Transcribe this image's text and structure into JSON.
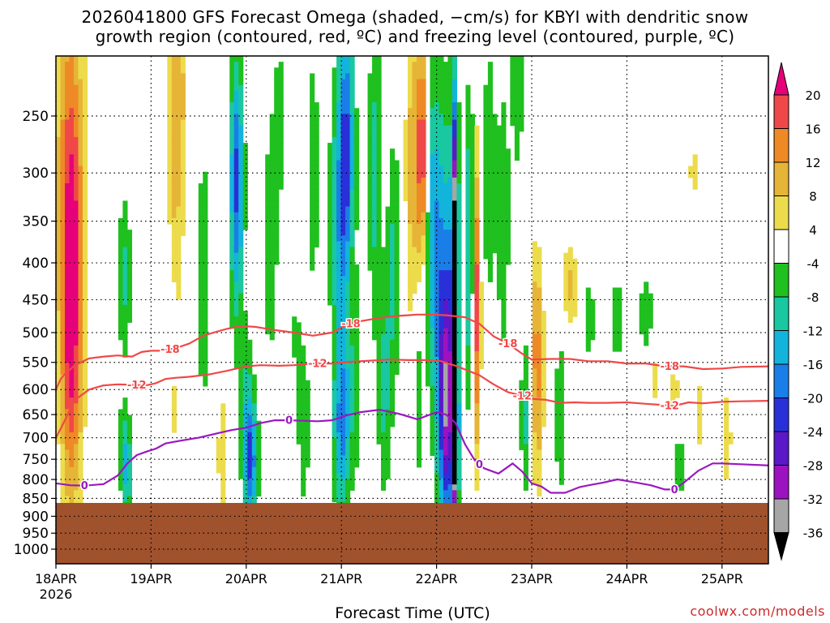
{
  "title_line1": "2026041800 GFS Forecast Omega (shaded, −cm/s) for KBYI with dendritic snow",
  "title_line2": "growth region (contoured, red, ºC) and freezing level (contoured, purple, ºC)",
  "xlabel": "Forecast Time (UTC)",
  "credit": "coolwx.com/models",
  "chart_data": {
    "type": "heatmap",
    "title": "2026041800 GFS Forecast Omega (shaded, −cm/s) for KBYI with dendritic snow growth region (contoured, red, ºC) and freezing level (contoured, purple, ºC)",
    "xlabel": "Forecast Time (UTC)",
    "ylabel": "",
    "x_ticks": [
      "18APR",
      "19APR",
      "20APR",
      "21APR",
      "22APR",
      "23APR",
      "24APR",
      "25APR"
    ],
    "x_year_label": "2026",
    "xlim_days": [
      0,
      7.5
    ],
    "y_ticks": [
      250,
      300,
      350,
      400,
      450,
      500,
      550,
      600,
      650,
      700,
      750,
      800,
      850,
      900,
      950,
      1000
    ],
    "ylim": [
      200,
      1050
    ],
    "y_scale": "log",
    "y_reversed": true,
    "grid": true,
    "colorbar": {
      "levels": [
        20,
        16,
        12,
        8,
        4,
        -4,
        -8,
        -12,
        -16,
        -20,
        -24,
        -28,
        -32,
        -36
      ],
      "colors": [
        "#e6007a",
        "#f04848",
        "#ee8a26",
        "#e6b437",
        "#ecdc4c",
        "#ffffff",
        "#1fc01f",
        "#19c8a0",
        "#12b4dc",
        "#1a7ee8",
        "#2a30d8",
        "#5a18c8",
        "#9c12c0",
        "#a6a6a6",
        "#000000"
      ]
    },
    "terrain_color": "#a0522d",
    "series": [
      {
        "name": "-18",
        "color": "#f04848",
        "x": [
          0,
          0.05,
          0.1,
          0.2,
          0.35,
          0.5,
          0.65,
          0.8,
          0.9,
          1.0,
          1.1,
          1.25,
          1.4,
          1.55,
          1.7,
          1.8,
          1.9,
          2.0,
          2.1,
          2.3,
          2.5,
          2.7,
          2.9,
          3.05,
          3.2,
          3.4,
          3.6,
          3.8,
          3.95,
          4.1,
          4.3,
          4.45,
          4.6,
          4.75,
          4.9,
          5.0,
          5.2,
          5.4,
          5.6,
          5.8,
          6.0,
          6.2,
          6.4,
          6.6,
          6.8,
          7.0,
          7.2,
          7.5
        ],
        "y": [
          600,
          580,
          570,
          555,
          543,
          540,
          538,
          540,
          532,
          530,
          530,
          526,
          518,
          505,
          498,
          494,
          491,
          490,
          491,
          496,
          500,
          505,
          500,
          488,
          482,
          477,
          474,
          472,
          472,
          473,
          476,
          486,
          506,
          518,
          535,
          545,
          544,
          544,
          548,
          548,
          552,
          552,
          557,
          557,
          562,
          561,
          558,
          557
        ]
      },
      {
        "name": "-12",
        "color": "#f04848",
        "x": [
          0,
          0.05,
          0.1,
          0.2,
          0.35,
          0.5,
          0.65,
          0.8,
          0.95,
          1.05,
          1.15,
          1.25,
          1.4,
          1.6,
          1.8,
          2.0,
          2.15,
          2.35,
          2.5,
          2.7,
          2.9,
          3.1,
          3.3,
          3.5,
          3.7,
          3.9,
          4.05,
          4.2,
          4.35,
          4.45,
          4.6,
          4.75,
          4.9,
          5.0,
          5.15,
          5.3,
          5.45,
          5.6,
          5.8,
          6.0,
          6.2,
          6.35,
          6.5,
          6.65,
          6.8,
          7.0,
          7.2,
          7.5
        ],
        "y": [
          700,
          680,
          660,
          620,
          600,
          592,
          590,
          591,
          592,
          588,
          580,
          578,
          576,
          572,
          565,
          557,
          555,
          556,
          555,
          552,
          552,
          549,
          547,
          545,
          546,
          546,
          548,
          556,
          566,
          573,
          590,
          605,
          612,
          618,
          620,
          626,
          625,
          626,
          626,
          625,
          628,
          630,
          632,
          625,
          627,
          624,
          623,
          622
        ]
      },
      {
        "name": "0",
        "color": "#9a18c0",
        "x": [
          0,
          0.15,
          0.3,
          0.5,
          0.65,
          0.75,
          0.85,
          0.95,
          1.05,
          1.15,
          1.3,
          1.5,
          1.7,
          1.85,
          2.0,
          2.15,
          2.3,
          2.45,
          2.6,
          2.75,
          2.9,
          3.05,
          3.2,
          3.4,
          3.6,
          3.8,
          4.0,
          4.1,
          4.2,
          4.3,
          4.4,
          4.5,
          4.65,
          4.8,
          4.9,
          5.0,
          5.1,
          5.2,
          5.35,
          5.5,
          5.6,
          5.75,
          5.9,
          6.1,
          6.25,
          6.4,
          6.5,
          6.6,
          6.75,
          6.9,
          7.0,
          7.2,
          7.5
        ],
        "y": [
          810,
          815,
          816,
          812,
          790,
          760,
          740,
          732,
          725,
          713,
          707,
          700,
          690,
          683,
          678,
          668,
          662,
          662,
          663,
          664,
          662,
          652,
          645,
          640,
          648,
          660,
          645,
          650,
          668,
          715,
          752,
          772,
          785,
          760,
          780,
          810,
          818,
          835,
          835,
          820,
          815,
          808,
          800,
          808,
          815,
          826,
          826,
          808,
          778,
          760,
          760,
          762,
          765
        ]
      }
    ]
  }
}
